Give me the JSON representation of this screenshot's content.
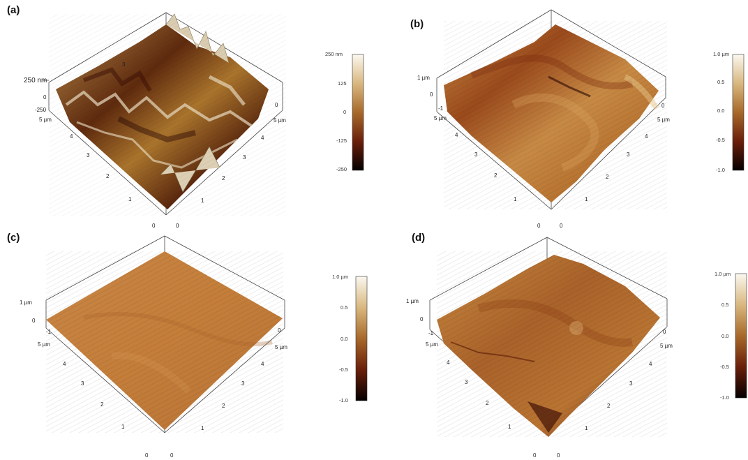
{
  "panels": [
    {
      "label": "(a)",
      "z_top": "250 nm",
      "z_mid": "0",
      "z_bot": "-250",
      "x_end": "5 µm",
      "x_start": "0",
      "y_end": "5 µm",
      "y_start": "0",
      "x_ticks": [
        "1",
        "2",
        "3",
        "4"
      ],
      "y_ticks": [
        "1",
        "2",
        "3",
        "4"
      ],
      "top_tick": "3",
      "colorbar": [
        "250 nm",
        "125",
        "0",
        "-125",
        "-250"
      ]
    },
    {
      "label": "(b)",
      "z_top": "1 µm",
      "z_mid": "0",
      "z_bot": "-1",
      "x_end": "5 µm",
      "x_start": "0",
      "y_end": "5 µm",
      "y_start": "0",
      "x_ticks": [
        "1",
        "2",
        "3",
        "4"
      ],
      "y_ticks": [
        "1",
        "2",
        "3",
        "4"
      ],
      "top_tick": "",
      "colorbar": [
        "1.0 µm",
        "0.5",
        "0.0",
        "-0.5",
        "-1.0"
      ]
    },
    {
      "label": "(c)",
      "z_top": "1 µm",
      "z_mid": "0",
      "z_bot": "-1",
      "x_end": "5 µm",
      "x_start": "0",
      "y_end": "5 µm",
      "y_start": "0",
      "x_ticks": [
        "1",
        "2",
        "3",
        "4"
      ],
      "y_ticks": [
        "1",
        "2",
        "3",
        "4"
      ],
      "top_tick": "",
      "colorbar": [
        "1.0 µm",
        "0.5",
        "0.0",
        "-0.5",
        "-1.0"
      ]
    },
    {
      "label": "(d)",
      "z_top": "1 µm",
      "z_mid": "0",
      "z_bot": "-1",
      "x_end": "5 µm",
      "x_start": "0",
      "y_end": "5 µm",
      "y_start": "0",
      "x_ticks": [
        "1",
        "2",
        "3",
        "4"
      ],
      "y_ticks": [
        "1",
        "2",
        "3",
        "4"
      ],
      "top_tick": "",
      "colorbar": [
        "1.0 µm",
        "0.5",
        "0.0",
        "-0.5",
        "-1.0"
      ]
    }
  ],
  "colors": {
    "cb_top": "#f7f1e4",
    "cb_upper": "#c79a4c",
    "cb_mid": "#9a5a1e",
    "cb_lower": "#5a1606",
    "cb_bottom": "#050000",
    "surface_a_light": "#e8dcc0",
    "surface_a_dark": "#3a0d04",
    "surface_orange": "#c27a34",
    "surface_dark_orange": "#8c4612"
  }
}
